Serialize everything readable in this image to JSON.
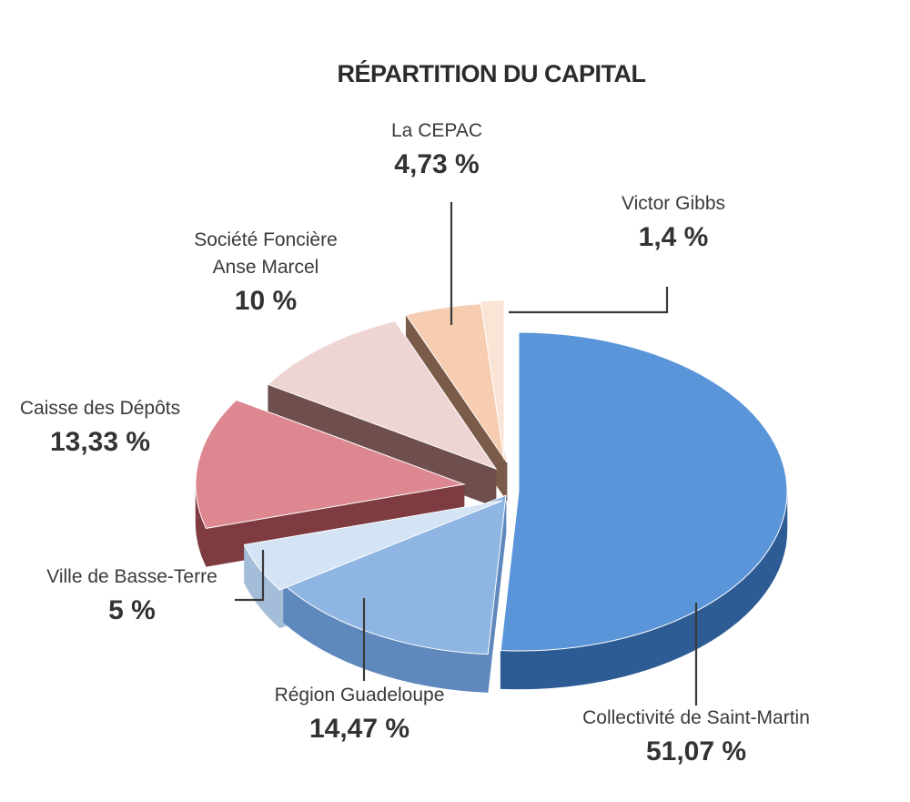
{
  "chart_data": {
    "type": "pie",
    "title": "RÉPARTITION DU CAPITAL",
    "slices": [
      {
        "name": "Collectivité de Saint-Martin",
        "value": 51.07,
        "value_label": "51,07 %",
        "color": "#5b95d9",
        "side_color": "#2d5c94"
      },
      {
        "name": "Région Guadeloupe",
        "value": 14.47,
        "value_label": "14,47 %",
        "color": "#8fb6e3",
        "side_color": "#5f89bd"
      },
      {
        "name": "Ville de Basse-Terre",
        "value": 5,
        "value_label": "5 %",
        "color": "#d4e4f5",
        "side_color": "#a4bdd9"
      },
      {
        "name": "Caisse des Dépôts",
        "value": 13.33,
        "value_label": "13,33 %",
        "color": "#dd8890",
        "side_color": "#7e3c41"
      },
      {
        "name": "Société Foncière\nAnse Marcel",
        "value": 10,
        "value_label": "10 %",
        "color": "#efd4d4",
        "side_color": "#6e4f4d"
      },
      {
        "name": "La CEPAC",
        "value": 4.73,
        "value_label": "4,73 %",
        "color": "#f6cdb0",
        "side_color": "#7a5a48"
      },
      {
        "name": "Victor Gibbs",
        "value": 1.4,
        "value_label": "1,4 %",
        "color": "#fae4d5",
        "side_color": "#8a7466"
      }
    ]
  }
}
